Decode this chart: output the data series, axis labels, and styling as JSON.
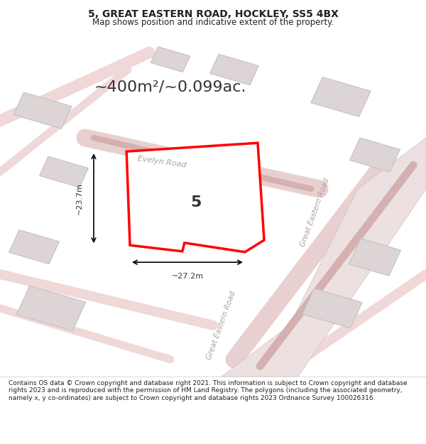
{
  "title": "5, GREAT EASTERN ROAD, HOCKLEY, SS5 4BX",
  "subtitle": "Map shows position and indicative extent of the property.",
  "area_text": "~400m²/~0.099ac.",
  "width_label": "~27.2m",
  "height_label": "~23.7m",
  "plot_number": "5",
  "background_color": "#f9f0f0",
  "map_bg": "#f5eeee",
  "road_color": "#f0d0d0",
  "road_fill": "#e8e0e0",
  "building_fill": "#e0dada",
  "building_edge": "#c8c0c0",
  "plot_fill": "#ffffff",
  "plot_edge": "#ff0000",
  "plot_edge_width": 2.5,
  "footer_text": "Contains OS data © Crown copyright and database right 2021. This information is subject to Crown copyright and database rights 2023 and is reproduced with the permission of HM Land Registry. The polygons (including the associated geometry, namely x, y co-ordinates) are subject to Crown copyright and database rights 2023 Ordnance Survey 100026316.",
  "evelyn_road_label": "Evelyn Road",
  "great_eastern_label": "Great Eastern Road",
  "great_eastern_label2": "Great Eastern Road"
}
